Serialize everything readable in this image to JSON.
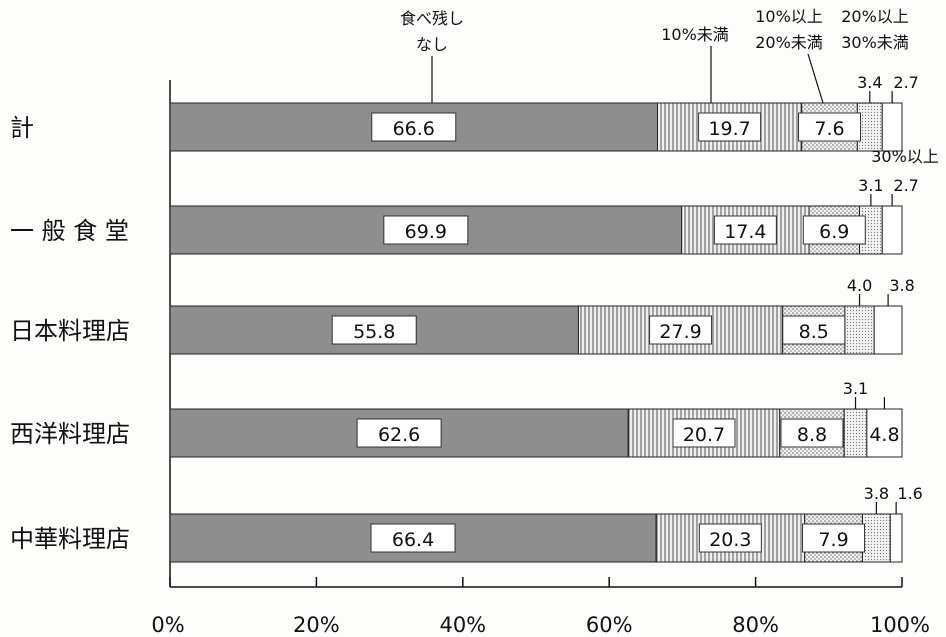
{
  "chart_data": {
    "type": "bar",
    "orientation": "horizontal",
    "stacked": true,
    "categories": [
      "計",
      "一 般 食 堂",
      "日本料理店",
      "西洋料理店",
      "中華料理店"
    ],
    "series": [
      {
        "name": "食べ残し\nなし",
        "values": [
          66.6,
          69.9,
          55.8,
          62.6,
          66.4
        ]
      },
      {
        "name": "10%未満",
        "values": [
          19.7,
          17.4,
          27.9,
          20.7,
          20.3
        ]
      },
      {
        "name": "10%以上\n20%未満",
        "values": [
          7.6,
          6.9,
          8.5,
          8.8,
          7.9
        ]
      },
      {
        "name": "20%以上\n30%未満",
        "values": [
          3.4,
          3.1,
          4.0,
          3.1,
          3.8
        ]
      },
      {
        "name": "30%以上",
        "values": [
          2.7,
          2.7,
          3.8,
          4.8,
          1.6
        ]
      }
    ],
    "xlim": [
      0,
      100
    ],
    "x_ticks": [
      "0%",
      "20%",
      "40%",
      "60%",
      "80%",
      "100%"
    ],
    "colors": [
      "#8e8e8e",
      "#cfcfcf",
      "#e4e4e4",
      "#d8d8d8",
      "#ffffff"
    ]
  }
}
